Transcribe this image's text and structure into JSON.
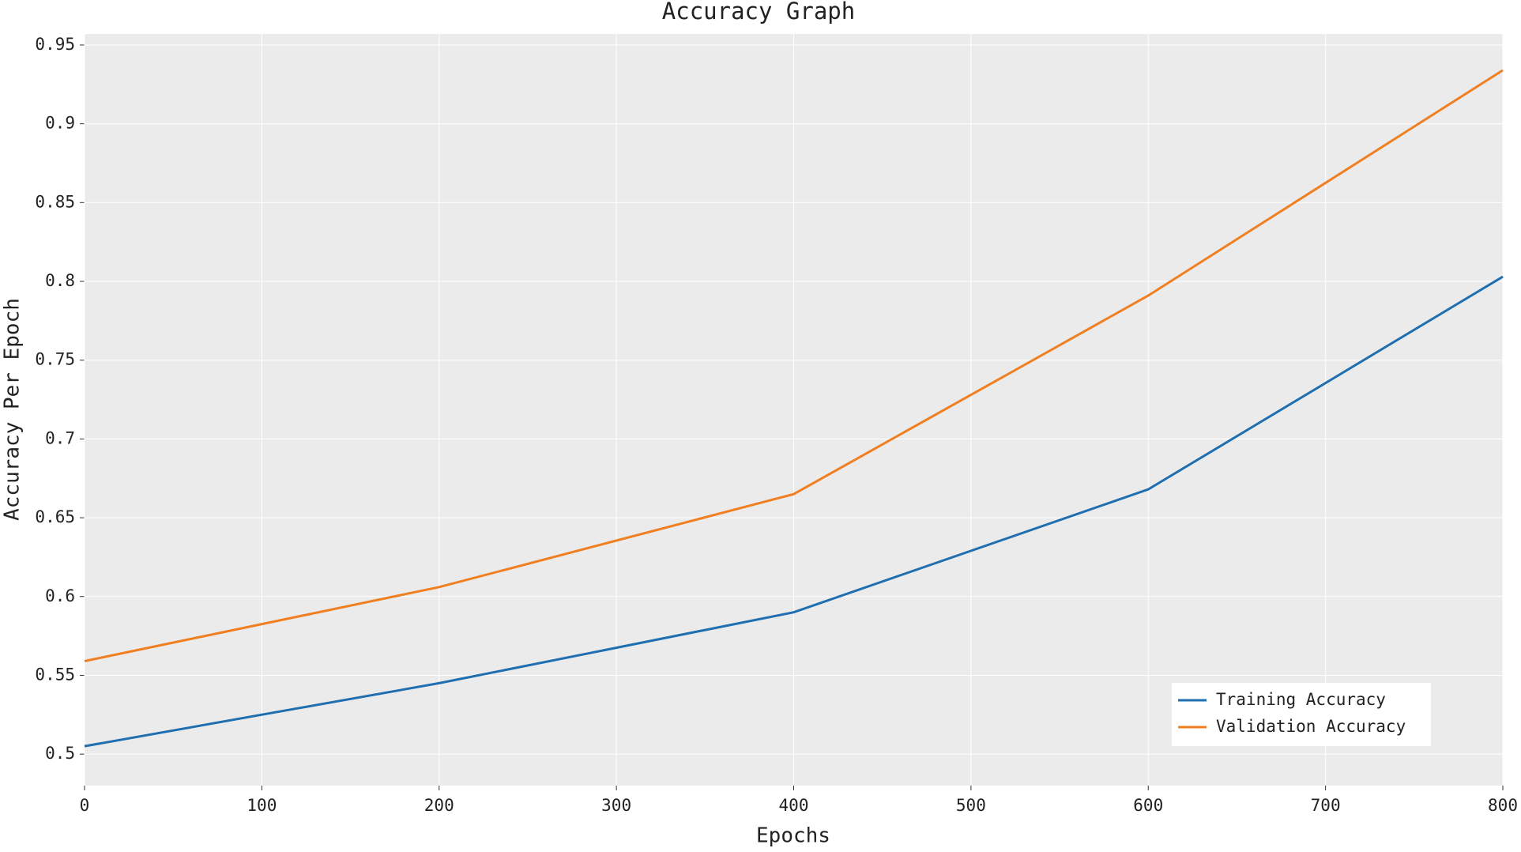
{
  "chart_data": {
    "type": "line",
    "title": "Accuracy Graph",
    "x_label": "Epochs",
    "y_label": "Accuracy Per Epoch",
    "x": [
      0,
      200,
      400,
      600,
      800
    ],
    "series": [
      {
        "name": "Training Accuracy",
        "color": "#1f6fb0",
        "values": [
          0.505,
          0.545,
          0.59,
          0.668,
          0.803
        ]
      },
      {
        "name": "Validation Accuracy",
        "color": "#f07f22",
        "values": [
          0.559,
          0.606,
          0.665,
          0.791,
          0.934
        ]
      }
    ],
    "xlim": [
      0,
      800
    ],
    "xticks": [
      0,
      100,
      200,
      300,
      400,
      500,
      600,
      700,
      800
    ],
    "ylim": [
      0.48,
      0.957
    ],
    "yticks": [
      0.5,
      0.55,
      0.6,
      0.65,
      0.7,
      0.75,
      0.8,
      0.85,
      0.9,
      0.95
    ],
    "grid": true,
    "legend": "lower right"
  }
}
